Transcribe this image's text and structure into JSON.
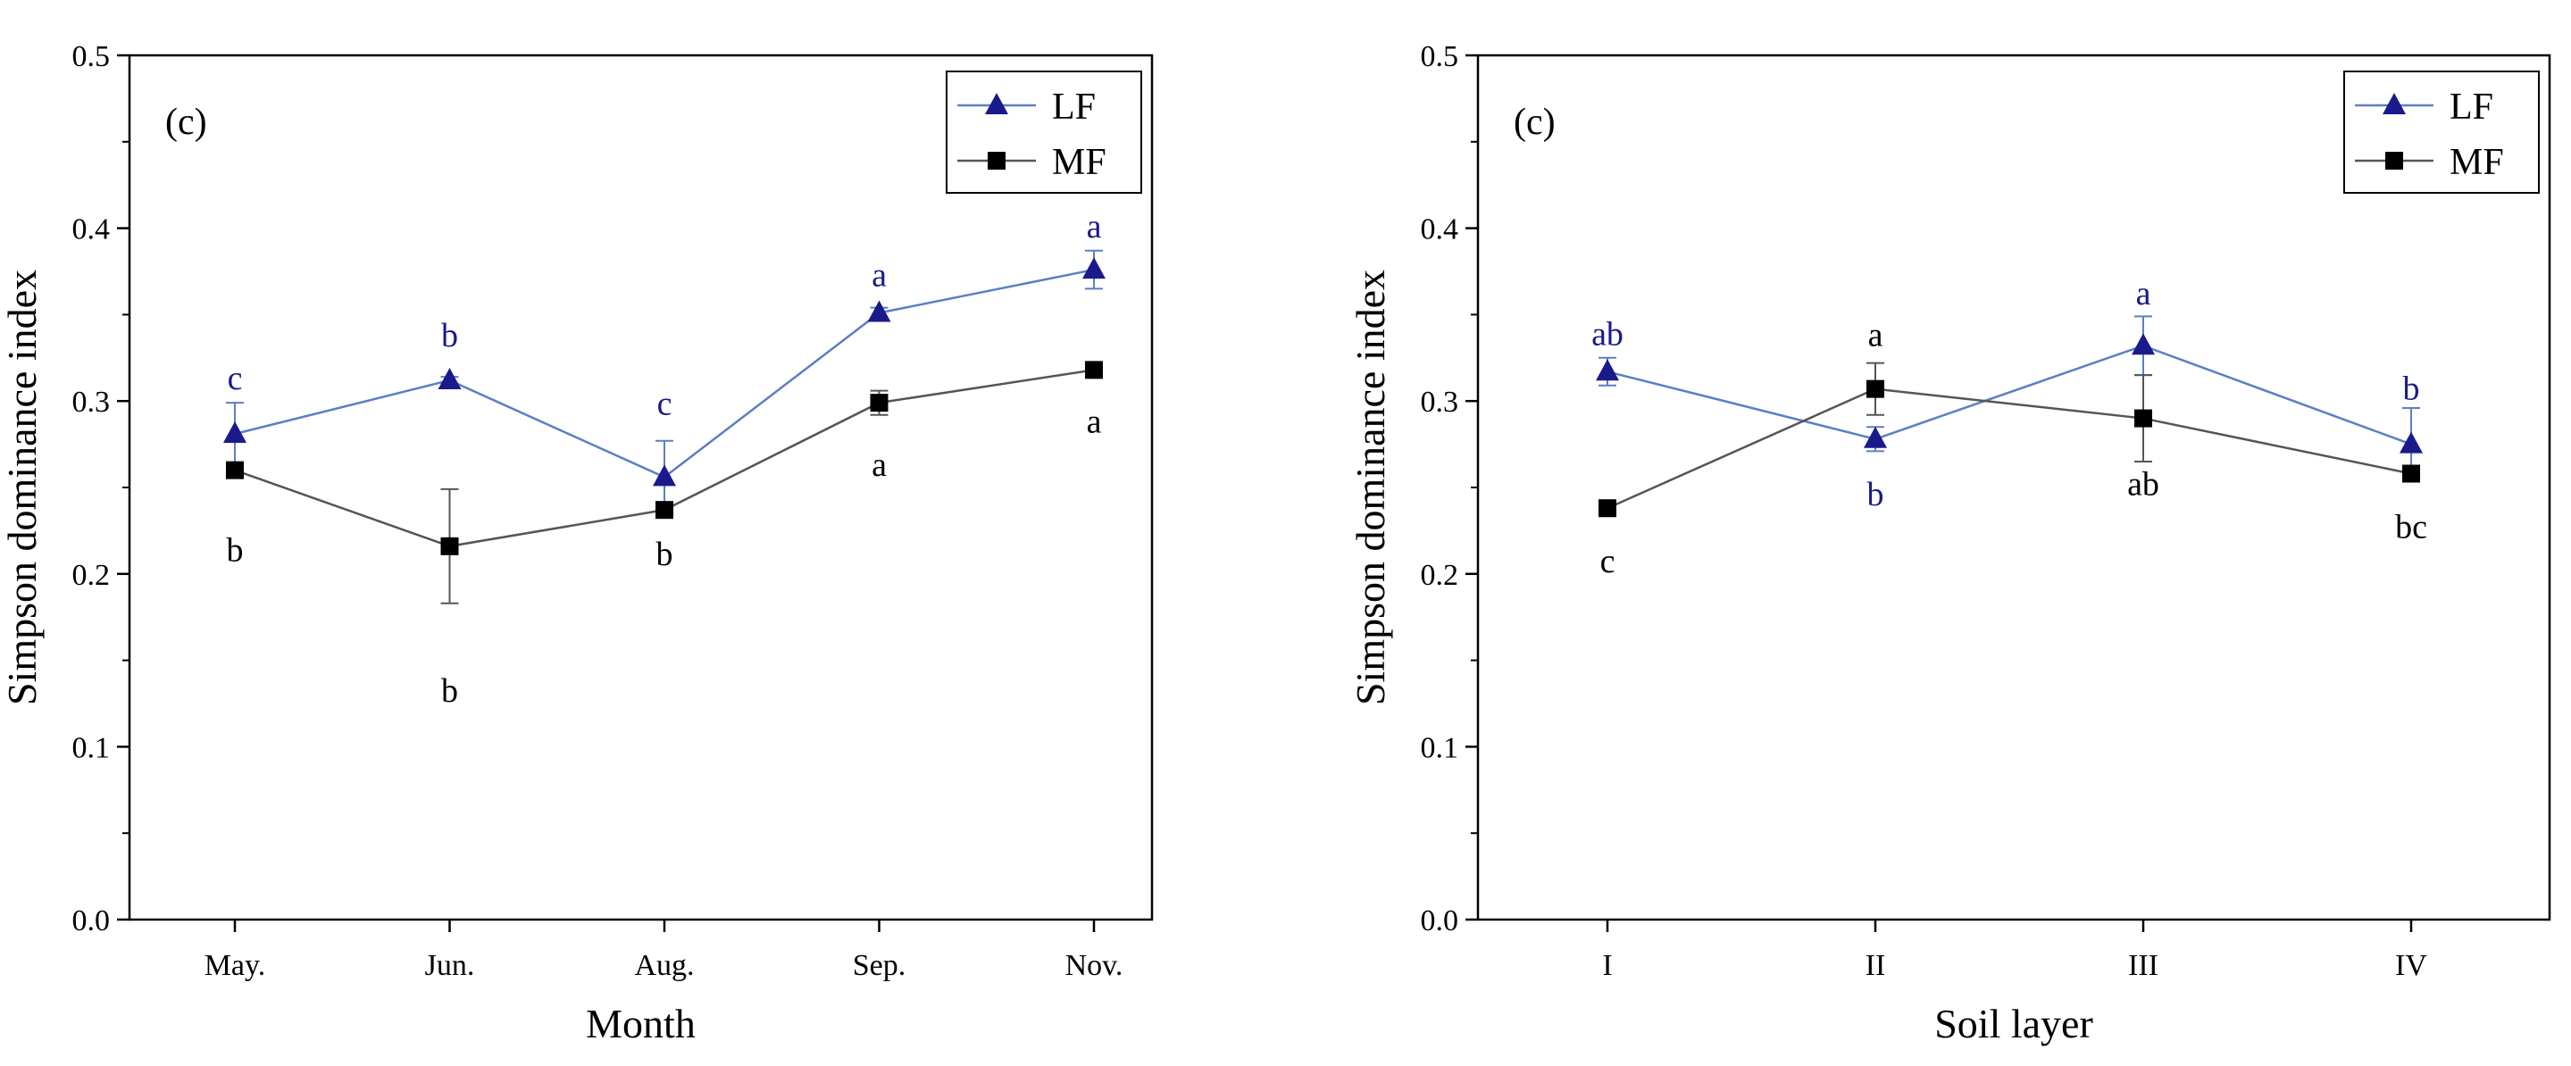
{
  "colors": {
    "LF": "#1a1a8c",
    "MF": "#000000",
    "lf_line": "#5b7fc4",
    "mf_line": "#555555"
  },
  "chart_data": [
    {
      "type": "line",
      "panel_label": "(c)",
      "xlabel": "Month",
      "ylabel": "Simpson dominance index",
      "ylim": [
        0.0,
        0.5
      ],
      "yticks": [
        "0.0",
        "0.1",
        "0.2",
        "0.3",
        "0.4",
        "0.5"
      ],
      "categories": [
        "May.",
        "Jun.",
        "Aug.",
        "Sep.",
        "Nov."
      ],
      "legend": [
        "LF",
        "MF"
      ],
      "legend_position": "top-right",
      "series": [
        {
          "name": "LF",
          "values": [
            0.281,
            0.312,
            0.256,
            0.351,
            0.376
          ],
          "errors": [
            0.018,
            0.002,
            0.021,
            0.003,
            0.011
          ],
          "letters": [
            "c",
            "b",
            "c",
            "a",
            "a"
          ]
        },
        {
          "name": "MF",
          "values": [
            0.26,
            0.216,
            0.237,
            0.299,
            0.318
          ],
          "errors": [
            0.003,
            0.033,
            0.003,
            0.007,
            0.002
          ],
          "letters": [
            "b",
            "b",
            "b",
            "a",
            "a"
          ]
        }
      ]
    },
    {
      "type": "line",
      "panel_label": "(c)",
      "xlabel": "Soil layer",
      "ylabel": "Simpson dominance index",
      "ylim": [
        0.0,
        0.5
      ],
      "yticks": [
        "0.0",
        "0.1",
        "0.2",
        "0.3",
        "0.4",
        "0.5"
      ],
      "categories": [
        "I",
        "II",
        "III",
        "IV"
      ],
      "legend": [
        "LF",
        "MF"
      ],
      "legend_position": "top-right",
      "series": [
        {
          "name": "LF",
          "values": [
            0.317,
            0.278,
            0.332,
            0.275
          ],
          "errors": [
            0.008,
            0.007,
            0.017,
            0.021
          ],
          "letters": [
            "ab",
            "b",
            "a",
            "b"
          ]
        },
        {
          "name": "MF",
          "values": [
            0.238,
            0.307,
            0.29,
            0.258
          ],
          "errors": [
            0.002,
            0.015,
            0.025,
            0.002
          ],
          "letters": [
            "c",
            "a",
            "ab",
            "bc"
          ]
        }
      ]
    }
  ]
}
